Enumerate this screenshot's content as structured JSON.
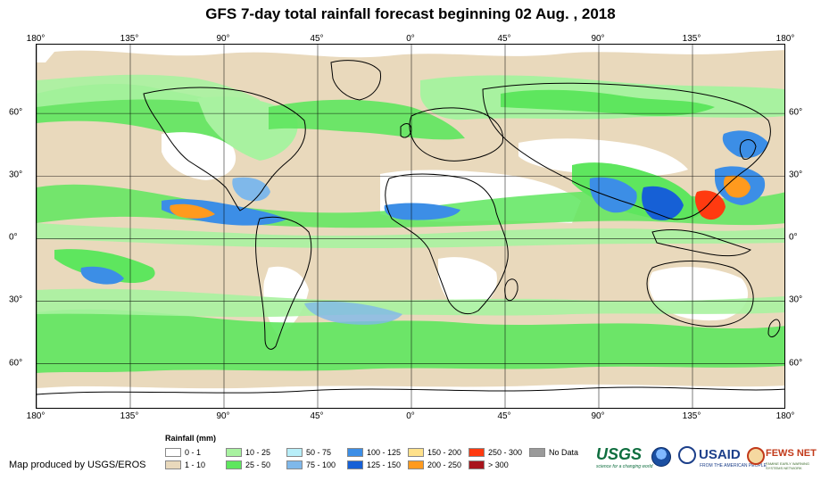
{
  "title": "GFS 7-day total rainfall forecast beginning 02 Aug. , 2018",
  "axes": {
    "lon_ticks": [
      {
        "label": "180°",
        "lon": -180
      },
      {
        "label": "135°",
        "lon": -135
      },
      {
        "label": "90°",
        "lon": -90
      },
      {
        "label": "45°",
        "lon": -45
      },
      {
        "label": "0°",
        "lon": 0
      },
      {
        "label": "45°",
        "lon": 45
      },
      {
        "label": "90°",
        "lon": 90
      },
      {
        "label": "135°",
        "lon": 135
      },
      {
        "label": "180°",
        "lon": 180
      }
    ],
    "lat_ticks": [
      {
        "label": "60°",
        "lat": 60
      },
      {
        "label": "30°",
        "lat": 30
      },
      {
        "label": "0°",
        "lat": 0
      },
      {
        "label": "30°",
        "lat": -30
      },
      {
        "label": "60°",
        "lat": -60
      }
    ],
    "lon_range": [
      -180,
      180
    ],
    "lat_range": [
      -82,
      93
    ]
  },
  "legend": {
    "title": "Rainfall (mm)",
    "items": [
      {
        "label": "0 - 1",
        "color": "#ffffff"
      },
      {
        "label": "1 - 10",
        "color": "#e9d9bc"
      },
      {
        "label": "10 - 25",
        "color": "#a8f2a0"
      },
      {
        "label": "25 - 50",
        "color": "#5ee65e"
      },
      {
        "label": "50 - 75",
        "color": "#b8eef8"
      },
      {
        "label": "75 - 100",
        "color": "#7fb8ea"
      },
      {
        "label": "100 - 125",
        "color": "#3c8ee6"
      },
      {
        "label": "125 - 150",
        "color": "#1660d6"
      },
      {
        "label": "150 - 200",
        "color": "#ffe18a"
      },
      {
        "label": "200 - 250",
        "color": "#ff9a1e"
      },
      {
        "label": "250 - 300",
        "color": "#ff3a10"
      },
      {
        "label": "> 300",
        "color": "#a8141c"
      },
      {
        "label": "No Data",
        "color": "#9a9a9a"
      }
    ]
  },
  "producer": "Map produced by USGS/EROS",
  "logos": {
    "usgs": "USGS",
    "usgs_tagline": "science for a changing world",
    "noaa": "noaa-logo",
    "usaid": "USAID",
    "usaid_tagline": "FROM THE AMERICAN PEOPLE",
    "fews": "FEWS NET",
    "fews_tagline": "FAMINE EARLY WARNING SYSTEMS NETWORK"
  }
}
